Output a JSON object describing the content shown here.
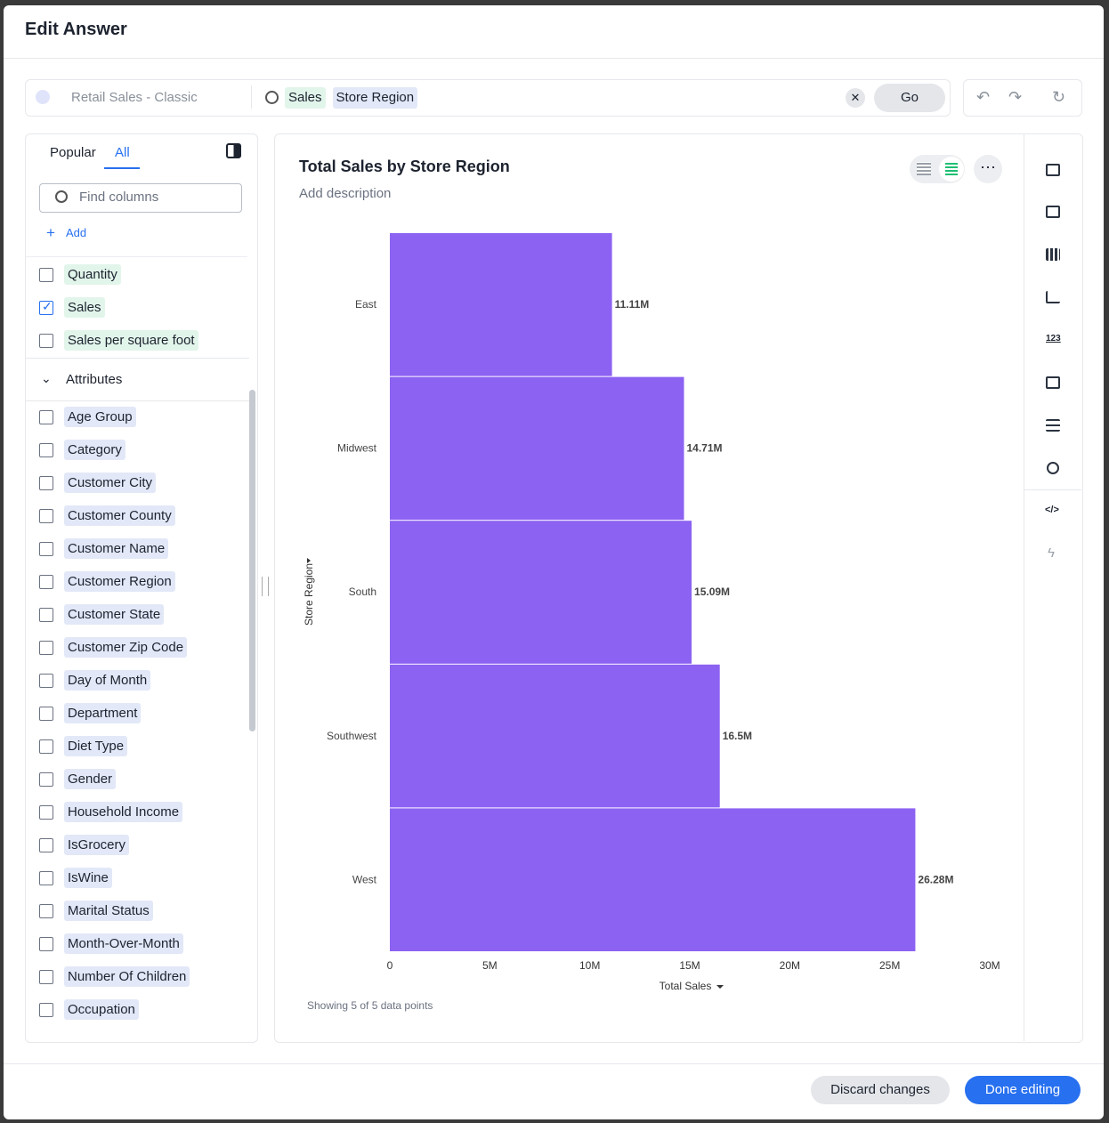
{
  "header": {
    "title": "Edit Answer"
  },
  "search": {
    "source": "Retail Sales - Classic",
    "tokens": [
      "Sales",
      "Store Region"
    ],
    "go": "Go"
  },
  "sidebar": {
    "tabs": [
      "Popular",
      "All"
    ],
    "active_tab": 1,
    "search_placeholder": "Find columns",
    "add": "Add",
    "measures": [
      {
        "label": "Quantity",
        "checked": false
      },
      {
        "label": "Sales",
        "checked": true
      },
      {
        "label": "Sales per square foot",
        "checked": false
      }
    ],
    "attributes_title": "Attributes",
    "attributes": [
      {
        "label": "Age Group",
        "checked": false
      },
      {
        "label": "Category",
        "checked": false
      },
      {
        "label": "Customer City",
        "checked": false
      },
      {
        "label": "Customer County",
        "checked": false
      },
      {
        "label": "Customer Name",
        "checked": false
      },
      {
        "label": "Customer Region",
        "checked": false
      },
      {
        "label": "Customer State",
        "checked": false
      },
      {
        "label": "Customer Zip Code",
        "checked": false
      },
      {
        "label": "Day of Month",
        "checked": false
      },
      {
        "label": "Department",
        "checked": false
      },
      {
        "label": "Diet Type",
        "checked": false
      },
      {
        "label": "Gender",
        "checked": false
      },
      {
        "label": "Household Income",
        "checked": false
      },
      {
        "label": "IsGrocery",
        "checked": false
      },
      {
        "label": "IsWine",
        "checked": false
      },
      {
        "label": "Marital Status",
        "checked": false
      },
      {
        "label": "Month-Over-Month",
        "checked": false
      },
      {
        "label": "Number Of Children",
        "checked": false
      },
      {
        "label": "Occupation",
        "checked": false
      }
    ]
  },
  "chart_data": {
    "type": "bar",
    "orientation": "horizontal",
    "title": "Total Sales by Store Region",
    "subtitle": "Add description",
    "x_label": "Total Sales",
    "y_label": "Store Region",
    "categories": [
      "East",
      "Midwest",
      "South",
      "Southwest",
      "West"
    ],
    "values": [
      11110000,
      14710000,
      15090000,
      16500000,
      26280000
    ],
    "value_labels": [
      "11.11M",
      "14.71M",
      "15.09M",
      "16.5M",
      "26.28M"
    ],
    "color": "#8c62f2",
    "xlim": [
      0,
      30000000
    ],
    "xticks": [
      0,
      {
        "value": 5000000,
        "label": "5M"
      },
      {
        "value": 10000000,
        "label": "10M"
      },
      {
        "value": 15000000,
        "label": "15M"
      },
      {
        "value": 20000000,
        "label": "20M"
      },
      {
        "value": 25000000,
        "label": "25M"
      },
      {
        "value": 30000000,
        "label": "30M"
      }
    ],
    "grid": false,
    "footnote": "Showing 5 of 5 data points"
  },
  "buttons": {
    "discard": "Discard changes",
    "done": "Done editing"
  }
}
